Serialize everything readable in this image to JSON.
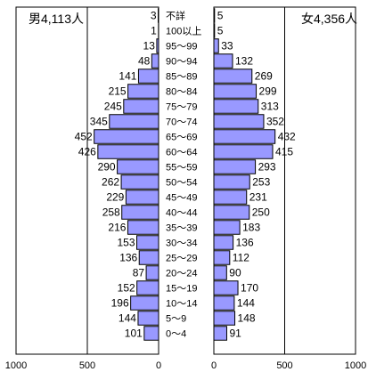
{
  "chart_data": {
    "type": "bar",
    "orientation": "horizontal-pyramid",
    "categories": [
      "不詳",
      "100以上",
      "95～99",
      "90～94",
      "85～89",
      "80～84",
      "75～79",
      "70～74",
      "65～69",
      "60～64",
      "55～59",
      "50～54",
      "45～49",
      "40～44",
      "35～39",
      "30～34",
      "25～29",
      "20～24",
      "15～19",
      "10～14",
      "5～9",
      "0～4"
    ],
    "series": [
      {
        "name": "男4,113人",
        "side": "left",
        "values": [
          3,
          1,
          13,
          48,
          141,
          215,
          245,
          345,
          452,
          426,
          290,
          262,
          229,
          258,
          216,
          153,
          136,
          87,
          152,
          196,
          144,
          101
        ]
      },
      {
        "name": "女4,356人",
        "side": "right",
        "values": [
          5,
          5,
          33,
          132,
          269,
          299,
          313,
          352,
          432,
          415,
          293,
          253,
          231,
          250,
          183,
          136,
          112,
          90,
          170,
          144,
          148,
          91
        ]
      }
    ],
    "xlim": [
      0,
      1000
    ],
    "left_ticks": [
      "1000",
      "500",
      "0"
    ],
    "right_ticks": [
      "0",
      "500",
      "1000"
    ],
    "colors": {
      "bar_fill": "#9999ff",
      "bar_stroke": "#000000",
      "frame": "#000000"
    }
  }
}
